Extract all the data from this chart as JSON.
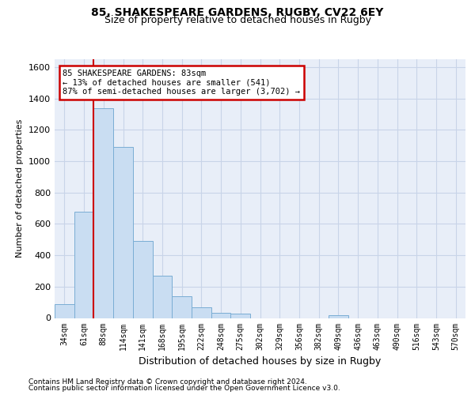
{
  "title1": "85, SHAKESPEARE GARDENS, RUGBY, CV22 6EY",
  "title2": "Size of property relative to detached houses in Rugby",
  "xlabel": "Distribution of detached houses by size in Rugby",
  "ylabel": "Number of detached properties",
  "footer1": "Contains HM Land Registry data © Crown copyright and database right 2024.",
  "footer2": "Contains public sector information licensed under the Open Government Licence v3.0.",
  "annotation_line1": "85 SHAKESPEARE GARDENS: 83sqm",
  "annotation_line2": "← 13% of detached houses are smaller (541)",
  "annotation_line3": "87% of semi-detached houses are larger (3,702) →",
  "bar_color": "#c9ddf2",
  "bar_edge_color": "#7aadd4",
  "highlight_color": "#cc0000",
  "highlight_bar_index": 2,
  "categories": [
    "34sqm",
    "61sqm",
    "88sqm",
    "114sqm",
    "141sqm",
    "168sqm",
    "195sqm",
    "222sqm",
    "248sqm",
    "275sqm",
    "302sqm",
    "329sqm",
    "356sqm",
    "382sqm",
    "409sqm",
    "436sqm",
    "463sqm",
    "490sqm",
    "516sqm",
    "543sqm",
    "570sqm"
  ],
  "values": [
    90,
    680,
    1340,
    1090,
    490,
    270,
    140,
    70,
    35,
    30,
    0,
    0,
    0,
    0,
    20,
    0,
    0,
    0,
    0,
    0,
    0
  ],
  "ylim": [
    0,
    1650
  ],
  "yticks": [
    0,
    200,
    400,
    600,
    800,
    1000,
    1200,
    1400,
    1600
  ],
  "grid_color": "#c8d4e8",
  "background_color": "#e8eef8"
}
